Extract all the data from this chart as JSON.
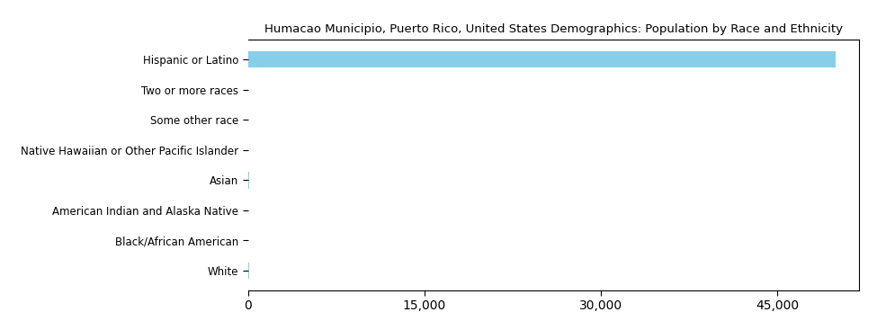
{
  "title": "Humacao Municipio, Puerto Rico, United States Demographics: Population by Race and Ethnicity",
  "categories": [
    "Hispanic or Latino",
    "Two or more races",
    "Some other race",
    "Native Hawaiian or Other Pacific Islander",
    "Asian",
    "American Indian and Alaska Native",
    "Black/African American",
    "White"
  ],
  "values": [
    50000,
    50,
    30,
    5,
    60,
    5,
    10,
    100
  ],
  "bar_color": "#87CEEB",
  "xlim": [
    0,
    52000
  ],
  "xticks": [
    0,
    15000,
    30000,
    45000
  ],
  "background_color": "#ffffff",
  "title_fontsize": 9.5,
  "label_fontsize": 8.5
}
